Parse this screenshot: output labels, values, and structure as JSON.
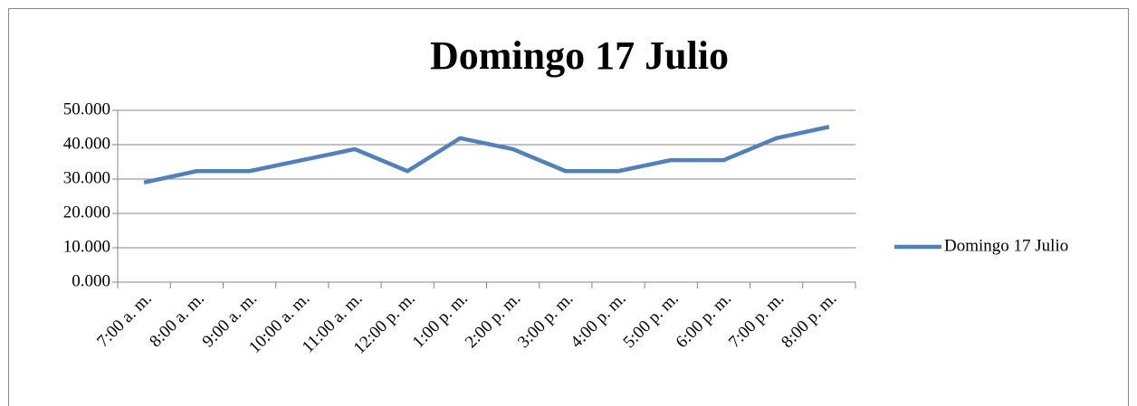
{
  "chart_data": {
    "type": "line",
    "title": "Domingo 17 Julio",
    "categories": [
      "7:00 a. m.",
      "8:00 a. m.",
      "9:00 a. m.",
      "10:00 a. m.",
      "11:00 a. m.",
      "12:00 p. m.",
      "1:00 p. m.",
      "2:00 p. m.",
      "3:00 p. m.",
      "4:00 p. m.",
      "5:00 p. m.",
      "6:00 p. m.",
      "7:00 p. m.",
      "8:00 p. m."
    ],
    "series": [
      {
        "name": "Domingo 17 Julio",
        "color": "#4f81bd",
        "values": [
          29.0,
          32.3,
          32.3,
          35.5,
          38.7,
          32.3,
          41.9,
          38.7,
          32.3,
          32.3,
          35.5,
          35.5,
          41.9,
          45.2
        ]
      }
    ],
    "ylim": [
      0,
      50
    ],
    "yticks": [
      {
        "value": 0,
        "label": "0.000"
      },
      {
        "value": 10,
        "label": "10.000"
      },
      {
        "value": 20,
        "label": "20.000"
      },
      {
        "value": 30,
        "label": "30.000"
      },
      {
        "value": 40,
        "label": "40.000"
      },
      {
        "value": 50,
        "label": "50.000"
      }
    ],
    "grid": true,
    "legend": "right"
  }
}
